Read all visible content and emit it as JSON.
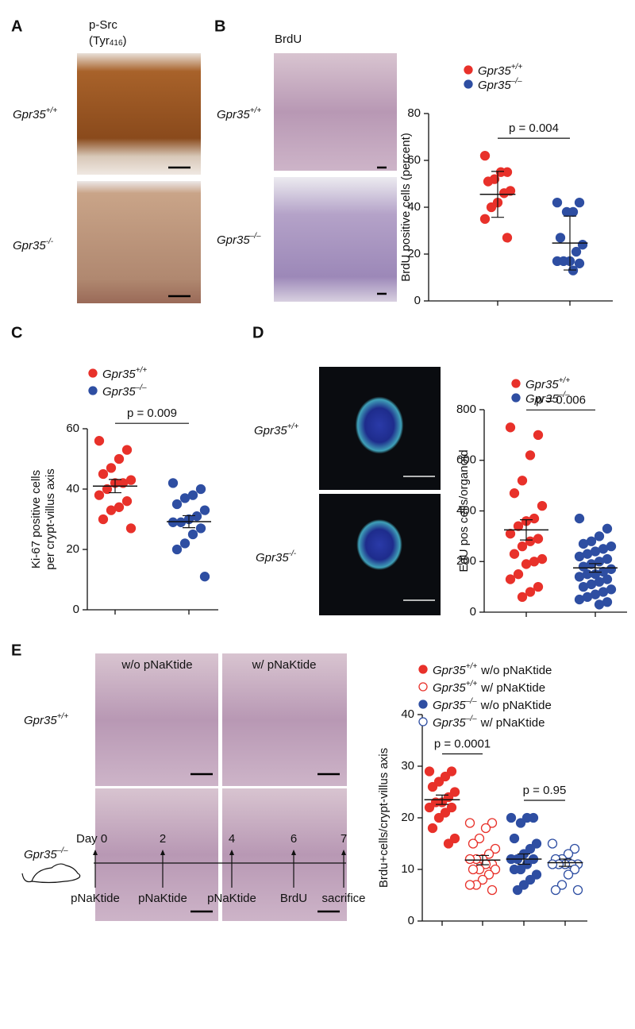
{
  "figure": {
    "A": {
      "letter": "A",
      "title_line1": "p-Src",
      "title_line2": "(Tyr",
      "title_sup": "416",
      "title_close": ")",
      "rows": [
        {
          "gene": "Gpr35",
          "genotype": "+/+"
        },
        {
          "gene": "Gpr35",
          "genotype": "-/-"
        }
      ]
    },
    "B": {
      "letter": "B",
      "title": "BrdU",
      "rows": [
        {
          "gene": "Gpr35",
          "genotype": "+/+"
        },
        {
          "gene": "Gpr35",
          "genotype": "–/–"
        }
      ]
    },
    "C": {
      "letter": "C"
    },
    "D": {
      "letter": "D",
      "rows": [
        {
          "gene": "Gpr35",
          "genotype": "+/+"
        },
        {
          "gene": "Gpr35",
          "genotype": "-/-"
        }
      ]
    },
    "E": {
      "letter": "E",
      "columns": [
        "w/o pNaKtide",
        "w/ pNaKtide"
      ],
      "rows": [
        {
          "gene": "Gpr35",
          "genotype": "+/+"
        },
        {
          "gene": "Gpr35",
          "genotype": "–/–"
        }
      ]
    },
    "timeline": {
      "days": [
        "Day 0",
        "2",
        "4",
        "6",
        "7"
      ],
      "events": [
        "pNaKtide",
        "pNaKtide",
        "pNaKtide",
        "BrdU",
        "sacrifice"
      ]
    }
  },
  "chart_data": [
    {
      "type": "dotplot",
      "ylabel": [
        "BrdU positive cells (percent)"
      ],
      "ylim": [
        0,
        80
      ],
      "yticks": [
        0,
        20,
        40,
        60,
        80
      ],
      "annotations": [
        "p = 0.004"
      ],
      "series": [
        {
          "name": {
            "gene": "Gpr35",
            "genotype": "+/+"
          },
          "color": "#e8312a",
          "filled": true,
          "values": [
            62,
            55,
            55,
            52,
            51,
            47,
            46,
            42,
            40,
            35,
            27
          ],
          "mean": 45.5,
          "error": 9.8
        },
        {
          "name": {
            "gene": "Gpr35",
            "genotype": "–/–"
          },
          "color": "#2e4ea2",
          "filled": true,
          "values": [
            42,
            42,
            38,
            38,
            27,
            24,
            21,
            17,
            17,
            17,
            16,
            13
          ],
          "mean": 24.7,
          "error": 11.5
        }
      ]
    },
    {
      "type": "dotplot",
      "ylabel": [
        "Ki-67 positive cells",
        "per crypt-villus axis"
      ],
      "ylim": [
        0,
        60
      ],
      "yticks": [
        0,
        20,
        40,
        60
      ],
      "annotations": [
        "p = 0.009"
      ],
      "series": [
        {
          "name": {
            "gene": "Gpr35",
            "genotype": "+/+"
          },
          "color": "#e8312a",
          "filled": true,
          "values": [
            56,
            53,
            50,
            47,
            45,
            43,
            42,
            42,
            40,
            38,
            36,
            34,
            33,
            30,
            27
          ],
          "mean": 41,
          "error": 2.2
        },
        {
          "name": {
            "gene": "Gpr35",
            "genotype": "–/–"
          },
          "color": "#2e4ea2",
          "filled": true,
          "values": [
            42,
            40,
            38,
            37,
            35,
            33,
            31,
            30,
            29,
            29,
            27,
            25,
            22,
            20,
            11
          ],
          "mean": 29.2,
          "error": 2
        }
      ]
    },
    {
      "type": "dotplot",
      "ylabel": [
        "EdU pos cells/organoid"
      ],
      "ylim": [
        0,
        800
      ],
      "yticks": [
        0,
        200,
        400,
        600,
        800
      ],
      "annotations": [
        "p = 0.006"
      ],
      "series": [
        {
          "name": {
            "gene": "Gpr35",
            "genotype": "+/+"
          },
          "color": "#e8312a",
          "filled": true,
          "values": [
            730,
            700,
            620,
            520,
            470,
            420,
            370,
            360,
            340,
            310,
            290,
            280,
            260,
            230,
            210,
            200,
            190,
            150,
            130,
            100,
            80,
            60
          ],
          "mean": 325,
          "error": 40
        },
        {
          "name": {
            "gene": "Gpr35",
            "genotype": "–/–"
          },
          "color": "#2e4ea2",
          "filled": true,
          "values": [
            370,
            330,
            300,
            280,
            270,
            260,
            250,
            240,
            230,
            220,
            210,
            200,
            190,
            180,
            170,
            160,
            150,
            150,
            140,
            130,
            120,
            110,
            100,
            90,
            80,
            70,
            60,
            50,
            40,
            30
          ],
          "mean": 175,
          "error": 17
        }
      ]
    },
    {
      "type": "dotplot",
      "ylabel": [
        "Brdu+cells/crypt-villus axis"
      ],
      "ylim": [
        0,
        40
      ],
      "yticks": [
        0,
        10,
        20,
        30,
        40
      ],
      "annotations": [
        "p = 0.0001",
        "p = 0.95"
      ],
      "series": [
        {
          "name": {
            "gene": "Gpr35",
            "genotype": "+/+",
            "treatment": "w/o pNaKtide"
          },
          "color": "#e8312a",
          "filled": true,
          "values": [
            29,
            29,
            28,
            27,
            26,
            25,
            24,
            23,
            23,
            22,
            22,
            21,
            20,
            18,
            16,
            15
          ],
          "mean": 23.5,
          "error": 0.9
        },
        {
          "name": {
            "gene": "Gpr35",
            "genotype": "+/+",
            "treatment": "w/ pNaKtide"
          },
          "color": "#e8312a",
          "filled": false,
          "values": [
            19,
            19,
            18,
            16,
            15,
            14,
            13,
            12,
            12,
            12,
            11,
            11,
            10,
            10,
            10,
            9,
            8,
            7,
            7,
            6
          ],
          "mean": 11.8,
          "error": 0.9
        },
        {
          "name": {
            "gene": "Gpr35",
            "genotype": "–/–",
            "treatment": "w/o pNaKtide"
          },
          "color": "#2e4ea2",
          "filled": true,
          "values": [
            20,
            20,
            20,
            19,
            16,
            15,
            14,
            13,
            12,
            12,
            12,
            11,
            10,
            10,
            9,
            8,
            7,
            6
          ],
          "mean": 12,
          "error": 1
        },
        {
          "name": {
            "gene": "Gpr35",
            "genotype": "–/–",
            "treatment": "w/ pNaKtide"
          },
          "color": "#2e4ea2",
          "filled": false,
          "values": [
            15,
            14,
            13,
            12,
            12,
            11,
            11,
            11,
            11,
            11,
            10,
            9,
            7,
            6,
            6
          ],
          "mean": 11.3,
          "error": 0.7
        }
      ]
    }
  ]
}
